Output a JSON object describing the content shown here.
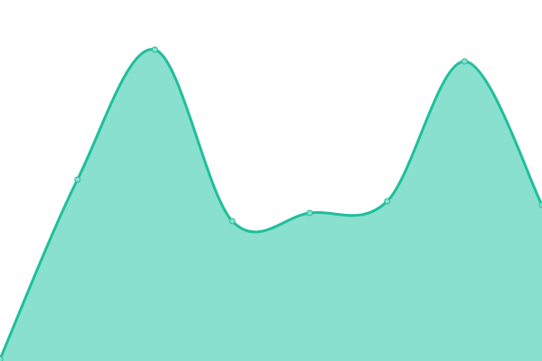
{
  "chart_data": {
    "type": "area",
    "smooth": true,
    "x": [
      0,
      1,
      2,
      3,
      4,
      5,
      6,
      7
    ],
    "values": [
      2,
      201,
      345,
      155,
      164,
      177,
      332,
      173
    ],
    "ylim": [
      0,
      400
    ],
    "xlim": [
      0,
      7
    ],
    "grid": false,
    "axes": false,
    "legend": "none",
    "line_color": "#1fbf9a",
    "fill_color": "#89e0cf",
    "point_fill": "#89e0cf"
  }
}
